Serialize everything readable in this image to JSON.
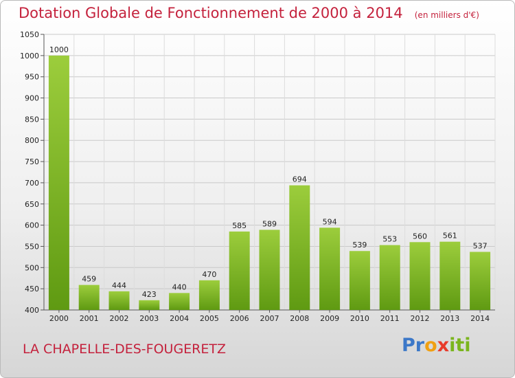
{
  "chart_data": {
    "type": "bar",
    "title": "Dotation Globale de Fonctionnement de 2000 à 2014",
    "subtitle": "(en milliers d'€)",
    "categories": [
      "2000",
      "2001",
      "2002",
      "2003",
      "2004",
      "2005",
      "2006",
      "2007",
      "2008",
      "2009",
      "2010",
      "2011",
      "2012",
      "2013",
      "2014"
    ],
    "values": [
      1000,
      459,
      444,
      423,
      440,
      470,
      585,
      589,
      694,
      594,
      539,
      553,
      560,
      561,
      537
    ],
    "ylim": [
      400,
      1050
    ],
    "yticks": [
      400,
      450,
      500,
      550,
      600,
      650,
      700,
      750,
      800,
      850,
      900,
      950,
      1000,
      1050
    ],
    "grid": true,
    "bar_color": "#7ab51d",
    "xlabel": "",
    "ylabel": ""
  },
  "footer": {
    "place_name": "LA CHAPELLE-DES-FOUGERETZ"
  },
  "logo": {
    "letters": [
      "P",
      "r",
      "o",
      "x",
      "i",
      "t",
      "i"
    ],
    "colors": [
      "#3c78c8",
      "#3c78c8",
      "#f0a012",
      "#e83a2a",
      "#7ab51d",
      "#7ab51d",
      "#7ab51d"
    ]
  }
}
